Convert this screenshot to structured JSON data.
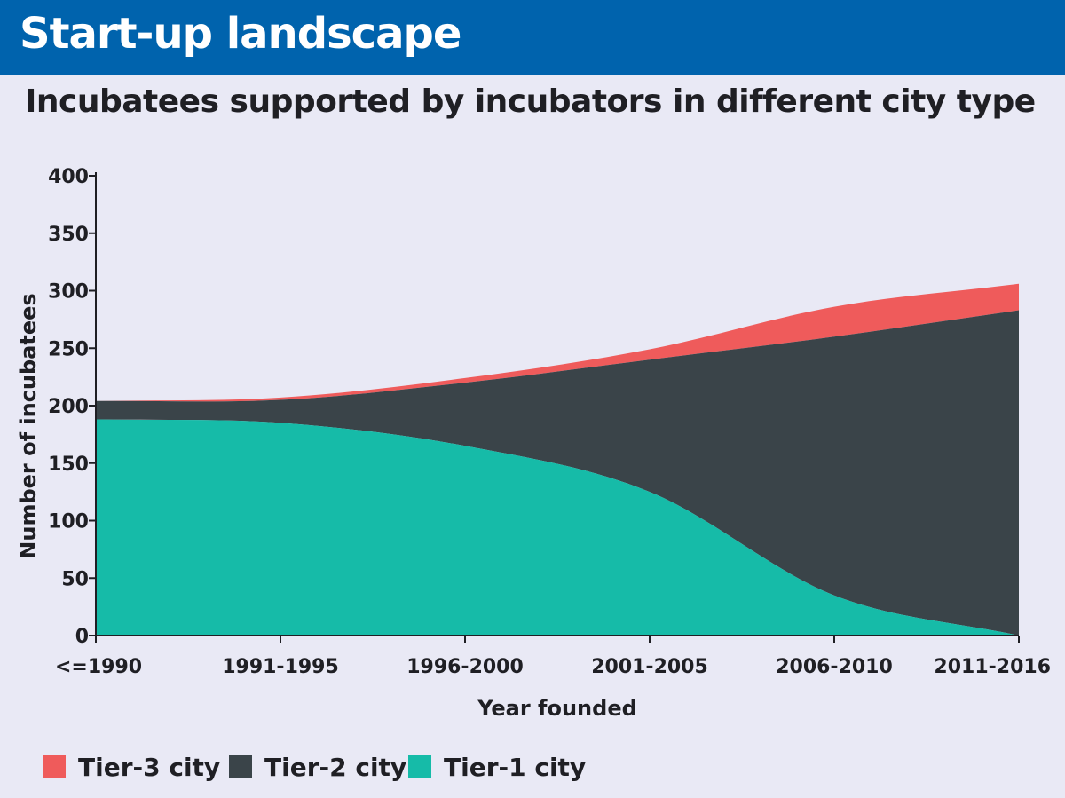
{
  "header": {
    "title": "Start-up landscape",
    "subtitle": "Incubatees supported by incubators in different city type"
  },
  "colors": {
    "banner": "#0063ad",
    "background": "#e9e9f5",
    "tier3": "#ef5b5b",
    "tier2": "#3a4449",
    "tier1": "#16bba8"
  },
  "chart_data": {
    "type": "area",
    "title": "Incubatees supported by incubators in different city type",
    "xlabel": "Year founded",
    "ylabel": "Number of incubatees",
    "categories": [
      "<=1990",
      "1991-1995",
      "1996-2000",
      "2001-2005",
      "2006-2010",
      "2011-2016"
    ],
    "ylim": [
      0,
      400
    ],
    "yticks": [
      0,
      50,
      100,
      150,
      200,
      250,
      300,
      350,
      400
    ],
    "stacking": "stream",
    "legend_position": "bottom",
    "series": [
      {
        "name": "Tier-3 city",
        "values": [
          0,
          2,
          4,
          9,
          26,
          23
        ]
      },
      {
        "name": "Tier-2 city",
        "values": [
          16,
          20,
          55,
          115,
          225,
          283
        ]
      },
      {
        "name": "Tier-1 city",
        "values": [
          188,
          185,
          165,
          125,
          35,
          0
        ]
      }
    ],
    "baseline": [
      0,
      0,
      0,
      0,
      0,
      0
    ]
  }
}
